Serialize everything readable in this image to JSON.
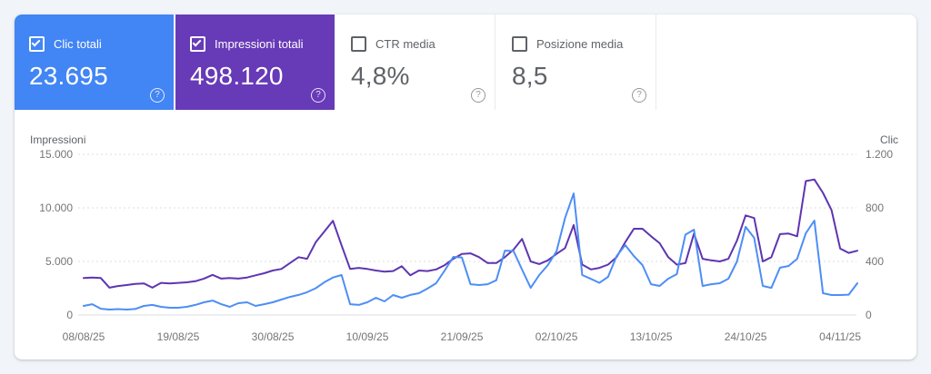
{
  "cards": [
    {
      "label": "Clic totali",
      "value": "23.695",
      "selected": true,
      "color": "#4285f4"
    },
    {
      "label": "Impressioni totali",
      "value": "498.120",
      "selected": true,
      "color": "#673ab7"
    },
    {
      "label": "CTR media",
      "value": "4,8%",
      "selected": false,
      "color": "#ffffff"
    },
    {
      "label": "Posizione media",
      "value": "8,5",
      "selected": false,
      "color": "#ffffff"
    }
  ],
  "help_icon_glyph": "?",
  "colors": {
    "clicks_accent": "#4285f4",
    "impressions_accent": "#673ab7",
    "clicks_line": "#4d8ef5",
    "impressions_line": "#5e35b1",
    "grid": "#dadce0",
    "page_background": "#f1f4f8"
  },
  "chart_data": {
    "type": "line",
    "frequency": "daily",
    "start_date": "08/08/25",
    "end_date": "06/11/25",
    "x_ticks": [
      {
        "day_index": 0,
        "label": "08/08/25"
      },
      {
        "day_index": 11,
        "label": "19/08/25"
      },
      {
        "day_index": 22,
        "label": "30/08/25"
      },
      {
        "day_index": 33,
        "label": "10/09/25"
      },
      {
        "day_index": 44,
        "label": "21/09/25"
      },
      {
        "day_index": 55,
        "label": "02/10/25"
      },
      {
        "day_index": 66,
        "label": "13/10/25"
      },
      {
        "day_index": 77,
        "label": "24/10/25"
      },
      {
        "day_index": 88,
        "label": "04/11/25"
      }
    ],
    "left_axis": {
      "label": "Impressioni",
      "max": 15000,
      "tick_values": [
        0,
        5000,
        10000,
        15000
      ],
      "tick_labels": [
        "0",
        "5.000",
        "10.000",
        "15.000"
      ]
    },
    "right_axis": {
      "label": "Clic",
      "max": 1200,
      "tick_values": [
        0,
        400,
        800,
        1200
      ],
      "tick_labels": [
        "0",
        "400",
        "800",
        "1.200"
      ]
    },
    "grid": "horizontal-dotted",
    "legend": "none",
    "series": [
      {
        "name": "Impressioni",
        "axis": "left",
        "color": "#5e35b1",
        "values": [
          3450,
          3500,
          3450,
          2550,
          2700,
          2800,
          2900,
          2950,
          2550,
          3000,
          2950,
          3000,
          3050,
          3150,
          3400,
          3750,
          3400,
          3450,
          3400,
          3500,
          3700,
          3900,
          4150,
          4300,
          4850,
          5400,
          5250,
          6800,
          7800,
          8800,
          6500,
          4300,
          4400,
          4300,
          4150,
          4050,
          4100,
          4550,
          3700,
          4150,
          4100,
          4250,
          4650,
          5250,
          5700,
          5750,
          5400,
          4850,
          4850,
          5400,
          6100,
          7100,
          5000,
          4750,
          5100,
          5700,
          6250,
          8400,
          4700,
          4250,
          4400,
          4700,
          5400,
          6800,
          8050,
          8050,
          7350,
          6700,
          5400,
          4700,
          4850,
          7600,
          5250,
          5100,
          5000,
          5250,
          6950,
          9300,
          9050,
          5000,
          5400,
          7550,
          7600,
          7350,
          12500,
          12650,
          11400,
          9800,
          6200,
          5800,
          6000
        ]
      },
      {
        "name": "Clic",
        "axis": "right",
        "color": "#4d8ef5",
        "values": [
          68,
          81,
          47,
          41,
          44,
          41,
          45,
          68,
          75,
          61,
          54,
          54,
          61,
          75,
          95,
          108,
          81,
          61,
          88,
          95,
          68,
          81,
          95,
          115,
          135,
          150,
          170,
          200,
          245,
          280,
          298,
          81,
          75,
          95,
          129,
          102,
          149,
          129,
          150,
          163,
          197,
          237,
          332,
          434,
          430,
          230,
          224,
          230,
          260,
          481,
          478,
          339,
          203,
          298,
          373,
          475,
          725,
          908,
          298,
          270,
          240,
          285,
          440,
          522,
          440,
          373,
          230,
          217,
          271,
          305,
          600,
          637,
          217,
          230,
          237,
          271,
          400,
          658,
          576,
          217,
          203,
          353,
          366,
          420,
          610,
          705,
          163,
          149,
          149,
          152,
          237
        ]
      }
    ]
  }
}
